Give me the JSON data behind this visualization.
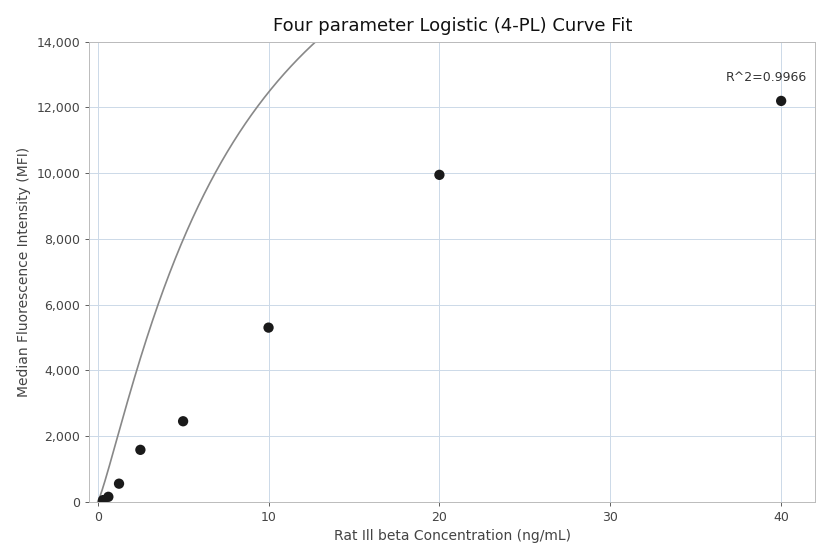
{
  "title": "Four parameter Logistic (4-PL) Curve Fit",
  "xlabel": "Rat Ill beta Concentration (ng/mL)",
  "ylabel": "Median Fluorescence Intensity (MFI)",
  "r_squared_text": "R^2=0.9966",
  "data_x": [
    0.313,
    0.625,
    1.25,
    2.5,
    5.0,
    10.0,
    20.0,
    40.0
  ],
  "data_y": [
    50,
    150,
    550,
    1580,
    2450,
    5300,
    9950,
    12200
  ],
  "xlim": [
    -0.5,
    42
  ],
  "ylim": [
    0,
    14000
  ],
  "yticks": [
    0,
    2000,
    4000,
    6000,
    8000,
    10000,
    12000,
    14000
  ],
  "xticks": [
    0,
    10,
    20,
    30,
    40
  ],
  "grid_color": "#ccd9e8",
  "dot_color": "#1a1a1a",
  "curve_color": "#888888",
  "background_color": "#ffffff",
  "title_fontsize": 13,
  "label_fontsize": 10,
  "tick_fontsize": 9,
  "annotation_fontsize": 9,
  "dot_size": 55,
  "4pl_A": 0,
  "4pl_B": 1.2,
  "4pl_C": 8.0,
  "4pl_D": 22000
}
